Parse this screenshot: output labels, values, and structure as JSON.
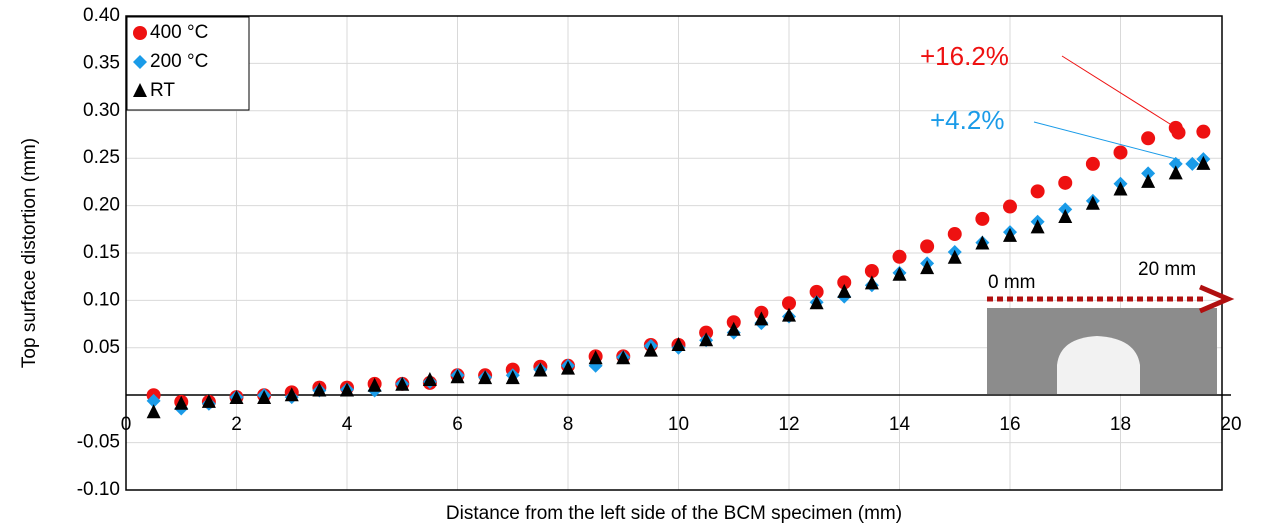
{
  "chart_data": {
    "type": "scatter",
    "x_label": "Distance from the left side of the BCM specimen (mm)",
    "y_label": "Top surface distortion (mm)",
    "xlim": [
      0,
      20
    ],
    "ylim": [
      -0.1,
      0.4
    ],
    "xticks": [
      0,
      2,
      4,
      6,
      8,
      10,
      12,
      14,
      16,
      18,
      20
    ],
    "yticks": [
      {
        "value": -0.1,
        "label": "-0.10"
      },
      {
        "value": -0.05,
        "label": "-0.05"
      },
      0.05,
      {
        "value": 0.1,
        "label": "0.10"
      },
      0.15,
      {
        "value": 0.2,
        "label": "0.20"
      },
      0.25,
      {
        "value": 0.3,
        "label": "0.30"
      },
      0.35,
      {
        "value": 0.4,
        "label": "0.40"
      }
    ],
    "grid": true,
    "legend": "upper left",
    "series": [
      {
        "name": "400 °C",
        "color": "#ee1111",
        "marker": "circle",
        "x": [
          0.5,
          1,
          1.5,
          2,
          2.5,
          3,
          3.5,
          4,
          4.5,
          5,
          5.5,
          6,
          6.5,
          7,
          7.5,
          8,
          8.5,
          9,
          9.5,
          10,
          10.5,
          11,
          11.5,
          12,
          12.5,
          13,
          13.5,
          14,
          14.5,
          15,
          15.5,
          16,
          16.5,
          17,
          17.5,
          18,
          18.5,
          19,
          19.05,
          19.5
        ],
        "values": [
          0.0,
          -0.007,
          -0.007,
          -0.002,
          0.0,
          0.003,
          0.008,
          0.008,
          0.012,
          0.012,
          0.013,
          0.021,
          0.021,
          0.027,
          0.03,
          0.031,
          0.041,
          0.041,
          0.053,
          0.053,
          0.066,
          0.077,
          0.087,
          0.097,
          0.109,
          0.119,
          0.131,
          0.146,
          0.157,
          0.17,
          0.186,
          0.199,
          0.215,
          0.224,
          0.244,
          0.256,
          0.271,
          0.282,
          0.277,
          0.278
        ]
      },
      {
        "name": "200 °C",
        "color": "#1a9be8",
        "marker": "diamond",
        "x": [
          0.5,
          1,
          1.5,
          2,
          2.5,
          3,
          3.5,
          4,
          4.5,
          5,
          5.5,
          6,
          6.5,
          7,
          7.5,
          8,
          8.5,
          9,
          9.5,
          10,
          10.5,
          11,
          11.5,
          12,
          12.5,
          13,
          13.5,
          14,
          14.5,
          15,
          15.5,
          16,
          16.5,
          17,
          17.5,
          18,
          18.5,
          19,
          19.3,
          19.5
        ],
        "values": [
          -0.006,
          -0.014,
          -0.009,
          -0.002,
          0.0,
          -0.002,
          0.005,
          0.006,
          0.005,
          0.012,
          0.014,
          0.021,
          0.019,
          0.021,
          0.027,
          0.031,
          0.031,
          0.04,
          0.052,
          0.05,
          0.058,
          0.066,
          0.076,
          0.083,
          0.098,
          0.104,
          0.116,
          0.129,
          0.139,
          0.151,
          0.161,
          0.172,
          0.183,
          0.196,
          0.205,
          0.223,
          0.234,
          0.244,
          0.244,
          0.249
        ]
      },
      {
        "name": "RT",
        "color": "#000000",
        "marker": "triangle",
        "x": [
          0.5,
          1,
          1.5,
          2,
          2.5,
          3,
          3.5,
          4,
          4.5,
          5,
          5.5,
          6,
          6.5,
          7,
          7.5,
          8,
          8.5,
          9,
          9.5,
          10,
          10.5,
          11,
          11.5,
          12,
          12.5,
          13,
          13.5,
          14,
          14.5,
          15,
          15.5,
          16,
          16.5,
          17,
          17.5,
          18,
          18.5,
          19,
          19.5
        ],
        "values": [
          -0.018,
          -0.009,
          -0.007,
          -0.003,
          -0.003,
          0.0,
          0.005,
          0.005,
          0.01,
          0.011,
          0.016,
          0.019,
          0.018,
          0.018,
          0.026,
          0.028,
          0.039,
          0.039,
          0.047,
          0.053,
          0.058,
          0.069,
          0.08,
          0.084,
          0.097,
          0.109,
          0.118,
          0.127,
          0.134,
          0.145,
          0.16,
          0.168,
          0.177,
          0.188,
          0.202,
          0.217,
          0.225,
          0.234,
          0.244
        ]
      }
    ],
    "annotations": [
      {
        "text": "+16.2%",
        "color": "#ee1111"
      },
      {
        "text": "+4.2%",
        "color": "#1a9be8"
      }
    ],
    "inset_labels": [
      "0 mm",
      "20 mm"
    ]
  }
}
